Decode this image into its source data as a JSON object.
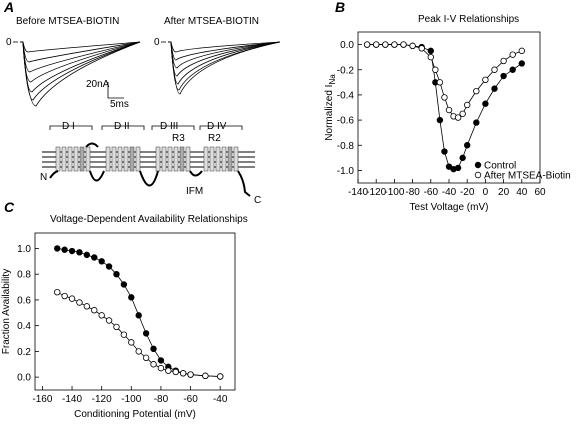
{
  "panel_a": {
    "label": "A",
    "traces": [
      {
        "title": "Before MTSEA-BIOTIN",
        "zero_label": "0"
      },
      {
        "title": "After MTSEA-BIOTIN",
        "zero_label": "0"
      }
    ],
    "scale": {
      "current": "20nA",
      "time": "5ms"
    },
    "domains": [
      "D I",
      "D II",
      "D III",
      "D IV"
    ],
    "segment_labels": [
      "R3",
      "R2"
    ],
    "termini": {
      "n": "N",
      "c": "C"
    },
    "motif": "IFM"
  },
  "chart_data": [
    {
      "type": "scatter",
      "panel_label": "B",
      "title": "Peak I-V  Relationships",
      "xlabel": "Test Voltage (mV)",
      "ylabel": "Normalized I",
      "ylabel_subscript": "Na",
      "xlim": [
        -140,
        60
      ],
      "ylim": [
        -1.1,
        0.1
      ],
      "xticks": [
        -140,
        -120,
        -100,
        -80,
        -60,
        -40,
        -20,
        {
          "value": 0,
          "label": "0"
        },
        20,
        40,
        60
      ],
      "yticks": [
        {
          "value": 0,
          "label": "0.0"
        },
        -0.2,
        -0.4,
        -0.6,
        -0.8,
        {
          "value": -1,
          "label": "-1.0"
        }
      ],
      "legend": "lower right",
      "series": [
        {
          "name": "Control",
          "color": "#000000",
          "marker_face": "#000000",
          "x": [
            -130,
            -120,
            -110,
            -100,
            -90,
            -80,
            -70,
            -60,
            -55,
            -50,
            -45,
            -40,
            -35,
            -30,
            -25,
            -20,
            -10,
            0,
            10,
            20,
            30,
            40
          ],
          "values": [
            0,
            0,
            0,
            0,
            0,
            -0.01,
            -0.02,
            -0.05,
            -0.3,
            -0.6,
            -0.85,
            -0.97,
            -0.99,
            -0.98,
            -0.9,
            -0.8,
            -0.62,
            -0.47,
            -0.35,
            -0.25,
            -0.2,
            -0.15
          ]
        },
        {
          "name": "After MTSEA-Biotin",
          "color": "#000000",
          "marker_face": "#ffffff",
          "x": [
            -130,
            -120,
            -110,
            -100,
            -90,
            -80,
            -70,
            -60,
            -55,
            -50,
            -45,
            -40,
            -35,
            -30,
            -25,
            -20,
            -10,
            0,
            10,
            20,
            30,
            40
          ],
          "values": [
            0,
            0,
            0,
            0,
            0,
            -0.01,
            -0.03,
            -0.1,
            -0.2,
            -0.3,
            -0.42,
            -0.52,
            -0.57,
            -0.58,
            -0.55,
            -0.48,
            -0.37,
            -0.28,
            -0.2,
            -0.13,
            -0.08,
            -0.05
          ]
        }
      ]
    },
    {
      "type": "scatter",
      "panel_label": "C",
      "title": "Voltage-Dependent Availability Relationships",
      "xlabel": "Conditioning Potential (mV)",
      "ylabel": "Fraction Availability",
      "xlim": [
        -165,
        -30
      ],
      "ylim": [
        -0.1,
        1.12
      ],
      "xticks": [
        -160,
        -140,
        -120,
        -100,
        -80,
        -60,
        -40
      ],
      "yticks": [
        {
          "value": 0,
          "label": "0.0"
        },
        0.2,
        0.4,
        0.6,
        0.8,
        {
          "value": 1,
          "label": "1.0"
        }
      ],
      "series": [
        {
          "name": "Control",
          "color": "#000000",
          "marker_face": "#000000",
          "x": [
            -150,
            -145,
            -140,
            -135,
            -130,
            -125,
            -120,
            -115,
            -110,
            -105,
            -100,
            -95,
            -90,
            -85,
            -80,
            -75,
            -70,
            -65,
            -60,
            -50,
            -40
          ],
          "values": [
            1.0,
            0.99,
            0.98,
            0.97,
            0.95,
            0.93,
            0.9,
            0.86,
            0.8,
            0.72,
            0.62,
            0.48,
            0.34,
            0.22,
            0.13,
            0.08,
            0.05,
            0.03,
            0.02,
            0.01,
            0.005
          ]
        },
        {
          "name": "After MTSEA-Biotin",
          "color": "#000000",
          "marker_face": "#ffffff",
          "x": [
            -150,
            -145,
            -140,
            -135,
            -130,
            -125,
            -120,
            -115,
            -110,
            -105,
            -100,
            -95,
            -90,
            -85,
            -80,
            -75,
            -70,
            -65,
            -60,
            -50,
            -40
          ],
          "values": [
            0.66,
            0.63,
            0.61,
            0.58,
            0.55,
            0.52,
            0.48,
            0.44,
            0.39,
            0.33,
            0.27,
            0.2,
            0.15,
            0.1,
            0.07,
            0.05,
            0.04,
            0.03,
            0.02,
            0.01,
            0.005
          ]
        }
      ]
    }
  ]
}
